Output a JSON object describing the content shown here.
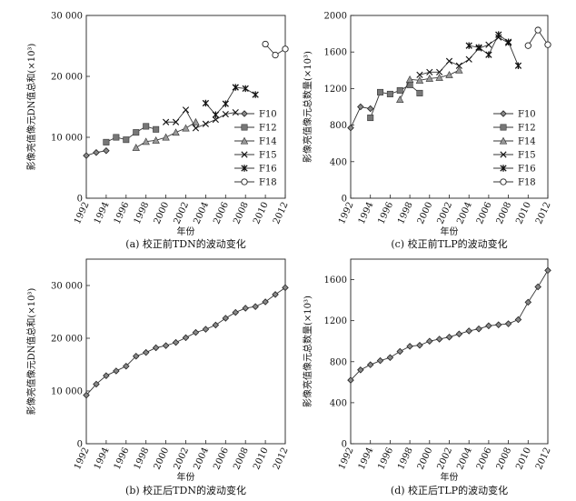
{
  "chart_data": [
    {
      "panel": "a",
      "type": "line",
      "caption": "(a) 校正前TDN的波动变化",
      "xlabel": "年份",
      "ylabel": "影像亮值像元DN值总和(×10³)",
      "xlim": [
        1992,
        2012
      ],
      "ylim": [
        0,
        30000
      ],
      "xticks": [
        1992,
        1994,
        1996,
        1998,
        2000,
        2002,
        2004,
        2006,
        2008,
        2010,
        2012
      ],
      "yticks": [
        0,
        10000,
        20000,
        30000
      ],
      "ytick_labels": [
        "0",
        "10 000",
        "20 000",
        "30 000"
      ],
      "legend_position": "right",
      "series": [
        {
          "name": "F10",
          "marker": "diamond",
          "x": [
            1992,
            1993,
            1994
          ],
          "values": [
            7000,
            7500,
            7800
          ]
        },
        {
          "name": "F12",
          "marker": "square",
          "x": [
            1994,
            1995,
            1996,
            1997,
            1998,
            1999
          ],
          "values": [
            9200,
            10000,
            9600,
            10800,
            11800,
            11300
          ]
        },
        {
          "name": "F14",
          "marker": "triangle",
          "x": [
            1997,
            1998,
            1999,
            2000,
            2001,
            2002,
            2003
          ],
          "values": [
            8300,
            9300,
            9500,
            10000,
            10800,
            11500,
            12500
          ]
        },
        {
          "name": "F15",
          "marker": "x",
          "x": [
            2000,
            2001,
            2002,
            2003,
            2004,
            2005,
            2006,
            2007,
            2008
          ],
          "values": [
            12500,
            12500,
            14500,
            11500,
            12200,
            12900,
            13800,
            14100,
            null
          ]
        },
        {
          "name": "F16",
          "marker": "star",
          "x": [
            2004,
            2005,
            2006,
            2007,
            2008,
            2009
          ],
          "values": [
            15600,
            13700,
            15500,
            18200,
            18000,
            17000
          ]
        },
        {
          "name": "F18",
          "marker": "circle",
          "x": [
            2010,
            2011,
            2012
          ],
          "values": [
            25300,
            23500,
            24500
          ]
        }
      ]
    },
    {
      "panel": "c",
      "type": "line",
      "caption": "(c) 校正前TLP的波动变化",
      "xlabel": "年份",
      "ylabel": "影像亮值像元总数量(×10³)",
      "xlim": [
        1992,
        2012
      ],
      "ylim": [
        0,
        2000
      ],
      "xticks": [
        1992,
        1994,
        1996,
        1998,
        2000,
        2002,
        2004,
        2006,
        2008,
        2010,
        2012
      ],
      "yticks": [
        0,
        400,
        800,
        1200,
        1600,
        2000
      ],
      "ytick_labels": [
        "0",
        "400",
        "800",
        "1200",
        "1600",
        "2000"
      ],
      "legend_position": "bottom-right",
      "series": [
        {
          "name": "F10",
          "marker": "diamond",
          "x": [
            1992,
            1993,
            1994
          ],
          "values": [
            770,
            1000,
            980
          ]
        },
        {
          "name": "F12",
          "marker": "square",
          "x": [
            1994,
            1995,
            1996,
            1997,
            1998,
            1999
          ],
          "values": [
            880,
            1160,
            1140,
            1180,
            1240,
            1150
          ]
        },
        {
          "name": "F14",
          "marker": "triangle",
          "x": [
            1997,
            1998,
            1999,
            2000,
            2001,
            2002,
            2003
          ],
          "values": [
            1080,
            1300,
            1290,
            1310,
            1320,
            1350,
            1400
          ]
        },
        {
          "name": "F15",
          "marker": "x",
          "x": [
            1999,
            2000,
            2001,
            2002,
            2003,
            2004,
            2005,
            2006,
            2007,
            2008
          ],
          "values": [
            1350,
            1380,
            1380,
            1500,
            1450,
            1520,
            1640,
            1680,
            1760,
            1700
          ]
        },
        {
          "name": "F16",
          "marker": "star",
          "x": [
            2004,
            2005,
            2006,
            2007,
            2008,
            2009
          ],
          "values": [
            1670,
            1650,
            1570,
            1790,
            1710,
            1450
          ]
        },
        {
          "name": "F18",
          "marker": "circle",
          "x": [
            2010,
            2011,
            2012
          ],
          "values": [
            1670,
            1840,
            1680
          ]
        }
      ]
    },
    {
      "panel": "b",
      "type": "line",
      "caption": "(b) 校正后TDN的波动变化",
      "xlabel": "年份",
      "ylabel": "影像亮值像元DN值总和(×10³)",
      "xlim": [
        1992,
        2012
      ],
      "ylim": [
        0,
        35000
      ],
      "xticks": [
        1992,
        1994,
        1996,
        1998,
        2000,
        2002,
        2004,
        2006,
        2008,
        2010,
        2012
      ],
      "yticks": [
        0,
        10000,
        20000,
        30000
      ],
      "ytick_labels": [
        "0",
        "10 000",
        "20 000",
        "30 000"
      ],
      "series": [
        {
          "name": "",
          "marker": "diamond",
          "x": [
            1992,
            1993,
            1994,
            1995,
            1996,
            1997,
            1998,
            1999,
            2000,
            2001,
            2002,
            2003,
            2004,
            2005,
            2006,
            2007,
            2008,
            2009,
            2010,
            2011,
            2012
          ],
          "values": [
            9200,
            11300,
            12900,
            13800,
            14700,
            16600,
            17300,
            18200,
            18600,
            19200,
            20100,
            21100,
            21700,
            22500,
            23800,
            24900,
            25700,
            26000,
            26900,
            28300,
            29600
          ]
        }
      ]
    },
    {
      "panel": "d",
      "type": "line",
      "caption": "(d) 校正后TLP的波动变化",
      "xlabel": "年份",
      "ylabel": "影像亮值像元总数量(×10³)",
      "xlim": [
        1992,
        2012
      ],
      "ylim": [
        0,
        1800
      ],
      "xticks": [
        1992,
        1994,
        1996,
        1998,
        2000,
        2002,
        2004,
        2006,
        2008,
        2010,
        2012
      ],
      "yticks": [
        0,
        400,
        800,
        1200,
        1600
      ],
      "ytick_labels": [
        "0",
        "400",
        "800",
        "1200",
        "1600"
      ],
      "series": [
        {
          "name": "",
          "marker": "diamond",
          "x": [
            1992,
            1993,
            1994,
            1995,
            1996,
            1997,
            1998,
            1999,
            2000,
            2001,
            2002,
            2003,
            2004,
            2005,
            2006,
            2007,
            2008,
            2009,
            2010,
            2011,
            2012
          ],
          "values": [
            620,
            720,
            770,
            810,
            840,
            900,
            950,
            960,
            1000,
            1020,
            1040,
            1070,
            1100,
            1120,
            1150,
            1160,
            1170,
            1210,
            1380,
            1530,
            1690
          ]
        }
      ]
    }
  ]
}
